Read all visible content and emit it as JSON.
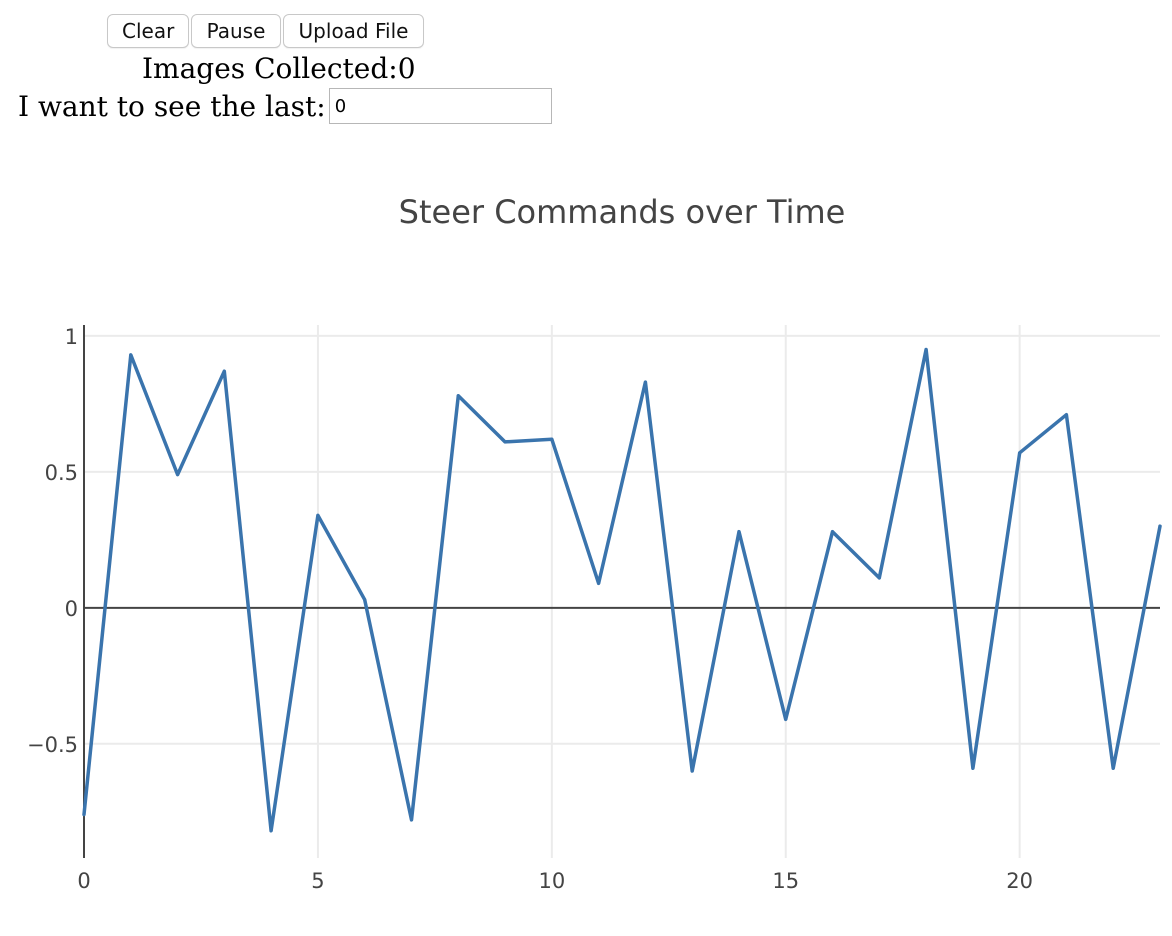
{
  "controls": {
    "clear_label": "Clear",
    "pause_label": "Pause",
    "upload_label": "Upload File"
  },
  "status": {
    "images_collected_text": "Images Collected:0"
  },
  "last": {
    "label": "I want to see the last:",
    "value": "0"
  },
  "colors": {
    "line": "#3a74ad",
    "grid": "#ebebeb",
    "zero_line": "#444444"
  },
  "chart_data": {
    "type": "line",
    "title": "Steer Commands over Time",
    "xlabel": "",
    "ylabel": "",
    "xlim": [
      0,
      23
    ],
    "ylim": [
      -0.92,
      1.04
    ],
    "xticks": [
      0,
      5,
      10,
      15,
      20
    ],
    "yticks": [
      -0.5,
      0,
      0.5,
      1
    ],
    "ytick_labels": [
      "−0.5",
      "0",
      "0.5",
      "1"
    ],
    "grid": true,
    "x": [
      0,
      1,
      2,
      3,
      4,
      5,
      6,
      7,
      8,
      9,
      10,
      11,
      12,
      13,
      14,
      15,
      16,
      17,
      18,
      19,
      20,
      21,
      22,
      23
    ],
    "y": [
      -0.76,
      0.93,
      0.49,
      0.87,
      -0.82,
      0.34,
      0.03,
      -0.78,
      0.78,
      0.61,
      0.62,
      0.09,
      0.83,
      -0.6,
      0.28,
      -0.41,
      0.28,
      0.11,
      0.95,
      -0.59,
      0.57,
      0.71,
      -0.59,
      0.3
    ]
  }
}
